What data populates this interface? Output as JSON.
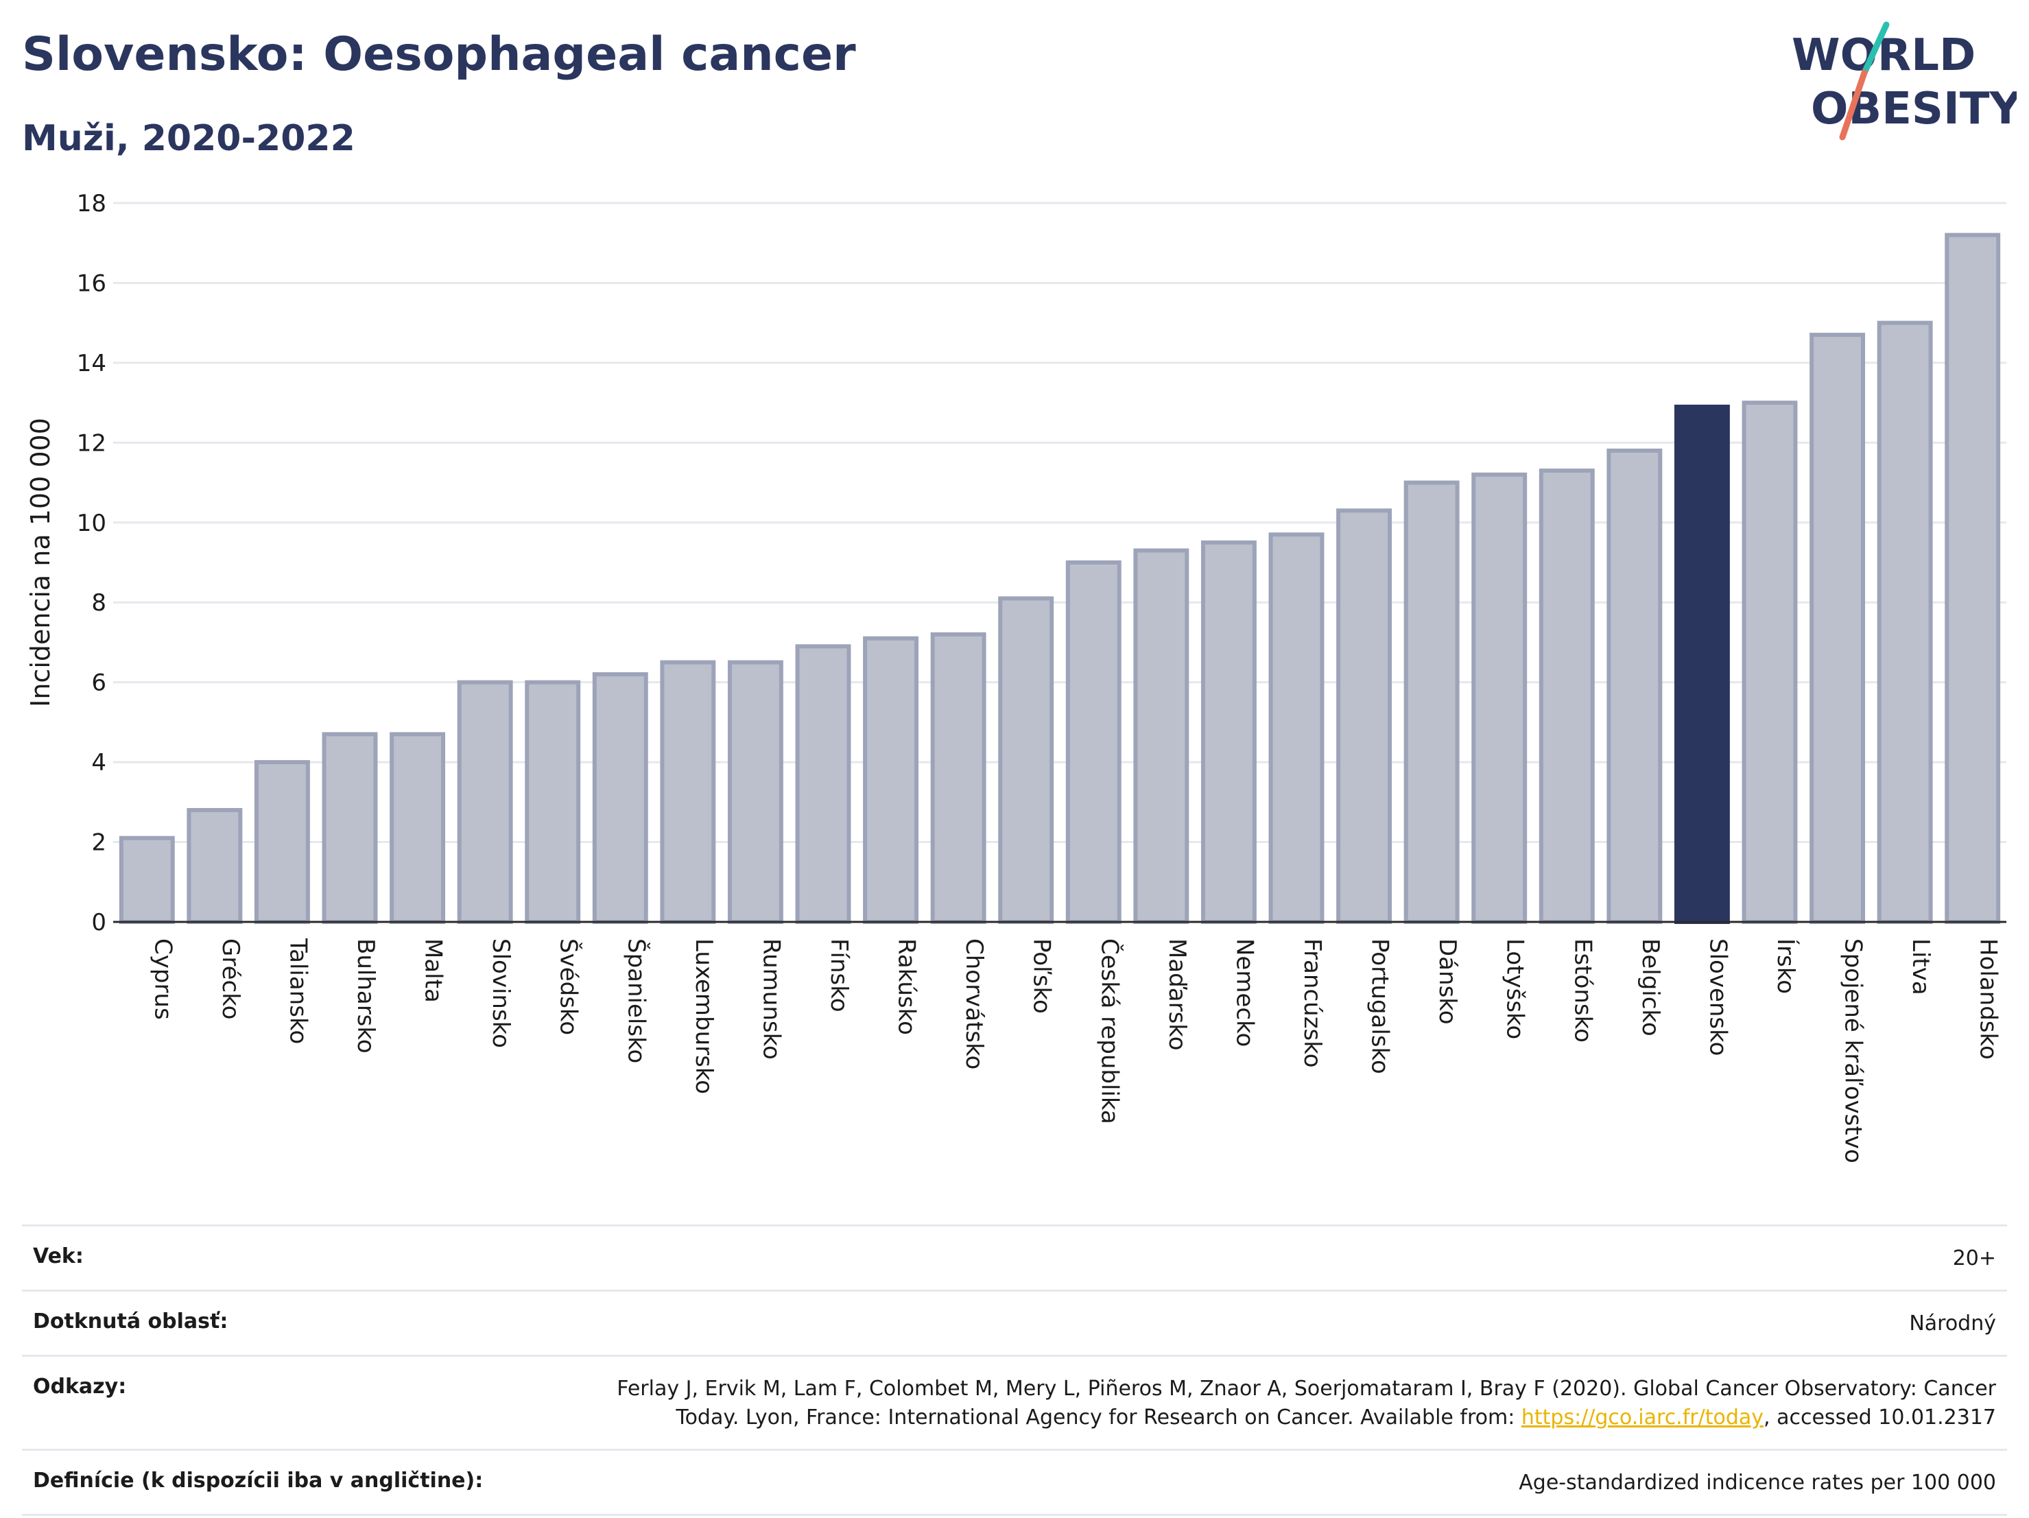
{
  "header": {
    "title": "Slovensko: Oesophageal cancer",
    "subtitle": "Muži, 2020-2022"
  },
  "logo": {
    "line1": "WORLD",
    "line2": "OBESITY",
    "accent_color": "#e8735a",
    "accent_color2": "#2bbfb0",
    "text_color": "#2b365f"
  },
  "colors": {
    "bar": "#bcc0cd",
    "bar_border": "#9da3b8",
    "highlight": "#2b365f",
    "text": "#1b1b1b"
  },
  "chart_data": {
    "type": "bar",
    "title": "Slovensko: Oesophageal cancer",
    "subtitle": "Muži, 2020-2022",
    "xlabel": "",
    "ylabel": "Incidencia na 100 000",
    "ylim": [
      0,
      18
    ],
    "yticks": [
      0,
      2,
      4,
      6,
      8,
      10,
      12,
      14,
      16,
      18
    ],
    "grid": true,
    "highlight": "Slovensko",
    "categories": [
      "Cyprus",
      "Grécko",
      "Taliansko",
      "Bulharsko",
      "Malta",
      "Slovinsko",
      "Švédsko",
      "Španielsko",
      "Luxembursko",
      "Rumunsko",
      "Fínsko",
      "Rakúsko",
      "Chorvátsko",
      "Poľsko",
      "Česká republika",
      "Maďarsko",
      "Nemecko",
      "Francúzsko",
      "Portugalsko",
      "Dánsko",
      "Lotyšsko",
      "Estónsko",
      "Belgicko",
      "Slovensko",
      "Írsko",
      "Spojené kráľovstvo",
      "Litva",
      "Holandsko"
    ],
    "values": [
      2.1,
      2.8,
      4.0,
      4.7,
      4.7,
      6.0,
      6.0,
      6.2,
      6.5,
      6.5,
      6.9,
      7.1,
      7.2,
      8.1,
      9.0,
      9.3,
      9.5,
      9.7,
      10.3,
      11.0,
      11.2,
      11.3,
      11.8,
      12.9,
      13.0,
      14.7,
      15.0,
      17.2
    ]
  },
  "info": {
    "age_label": "Vek:",
    "age_value": "20+",
    "area_label": "Dotknutá oblasť:",
    "area_value": "Národný",
    "refs_label": "Odkazy:",
    "refs_line1": "Ferlay J, Ervik M, Lam F, Colombet M, Mery L, Piñeros M, Znaor A, Soerjomataram I, Bray F (2020). Global Cancer Observatory: Cancer",
    "refs_line2_pre": "Today. Lyon, France: International Agency for Research on Cancer. Available from: ",
    "refs_link": "https://gco.iarc.fr/today",
    "refs_line2_post": ", accessed 10.01.2317",
    "defs_label": "Definície (k dispozícii iba v angličtine):",
    "defs_value": "Age-standardized indicence rates per 100 000"
  }
}
